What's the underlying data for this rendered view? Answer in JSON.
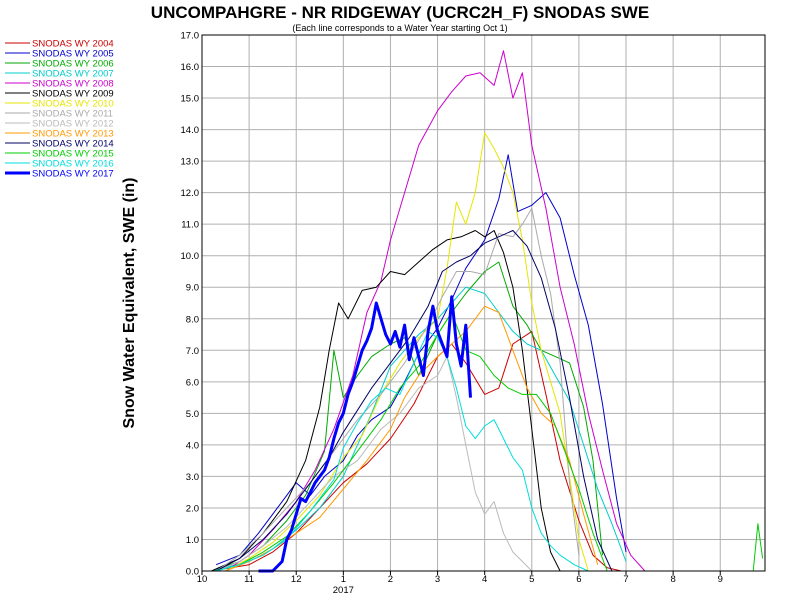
{
  "chart_data": {
    "type": "line",
    "title": "UNCOMPAHGRE - NR RIDGEWAY (UCRC2H_F) SNODAS SWE",
    "subtitle": "(Each line corresponds to a Water Year starting Oct 1)",
    "ylabel": "Snow Water Equivalent, SWE (in)",
    "xlabel": "",
    "ylim": [
      0,
      17
    ],
    "yticks": [
      "0.0",
      "1.0",
      "2.0",
      "3.0",
      "4.0",
      "5.0",
      "6.0",
      "7.0",
      "8.0",
      "9.0",
      "10.0",
      "11.0",
      "12.0",
      "13.0",
      "14.0",
      "15.0",
      "16.0",
      "17.0"
    ],
    "xlim": [
      10,
      10.95
    ],
    "xticks": [
      {
        "value": 10,
        "label": "10"
      },
      {
        "value": 11,
        "label": "11"
      },
      {
        "value": 12,
        "label": "12"
      },
      {
        "value": 13,
        "label": "1"
      },
      {
        "value": 14,
        "label": "2"
      },
      {
        "value": 15,
        "label": "3"
      },
      {
        "value": 16,
        "label": "4"
      },
      {
        "value": 17,
        "label": "5"
      },
      {
        "value": 18,
        "label": "6"
      },
      {
        "value": 19,
        "label": "7"
      },
      {
        "value": 20,
        "label": "8"
      },
      {
        "value": 21,
        "label": "9"
      }
    ],
    "year_label": {
      "value": 13,
      "label": "2017"
    },
    "grid": true,
    "legend_position": "left-outside",
    "series": [
      {
        "name": "SNODAS WY 2004",
        "color": "#cc0000",
        "width": 1,
        "x": [
          10.2,
          11,
          11.5,
          12,
          12.5,
          13,
          13.5,
          14,
          14.5,
          15,
          15.3,
          15.6,
          16,
          16.3,
          16.6,
          17,
          17.3,
          17.6,
          18,
          18.3,
          18.6,
          18.9
        ],
        "y": [
          0,
          0.2,
          0.6,
          1.2,
          2,
          2.8,
          3.4,
          4.2,
          5.3,
          6.8,
          7.2,
          6.6,
          5.6,
          5.8,
          7.2,
          7.6,
          5.6,
          3.5,
          1.6,
          0.5,
          0.1,
          0
        ]
      },
      {
        "name": "SNODAS WY 2005",
        "color": "#0000cc",
        "width": 1,
        "x": [
          10.3,
          10.8,
          11.2,
          11.6,
          12,
          12.3,
          12.6,
          13,
          13.3,
          13.6,
          14,
          14.3,
          14.6,
          15,
          15.3,
          15.6,
          16,
          16.3,
          16.5,
          16.7,
          17,
          17.3,
          17.6,
          17.9,
          18.2,
          18.5,
          18.8,
          19
        ],
        "y": [
          0.2,
          0.5,
          1.2,
          2,
          2.8,
          2.4,
          3,
          3.5,
          4.3,
          4.8,
          5.2,
          6,
          6.9,
          7.7,
          8.6,
          9.6,
          10.5,
          11.8,
          13.2,
          11.4,
          11.6,
          12,
          11.2,
          9.4,
          7.8,
          5.3,
          2.3,
          0.6
        ]
      },
      {
        "name": "SNODAS WY 2006",
        "color": "#00aa00",
        "width": 1,
        "x": [
          10.2,
          10.8,
          11.3,
          11.8,
          12.2,
          12.6,
          12.8,
          13,
          13.3,
          13.6,
          14,
          14.3,
          14.6,
          15,
          15.3,
          15.6,
          16,
          16.3,
          16.6,
          16.9,
          17.2,
          17.5,
          17.8,
          18.1,
          18.3,
          18.5
        ],
        "y": [
          0,
          0.3,
          0.8,
          1.6,
          2.4,
          3.8,
          7,
          5.5,
          6.2,
          6.8,
          7.2,
          7.4,
          6.2,
          7.5,
          8.2,
          8.8,
          9.5,
          9.8,
          8.4,
          7.8,
          7,
          6.8,
          6.6,
          5.2,
          3.5,
          0.5
        ]
      },
      {
        "name": "SNODAS WY 2007",
        "color": "#00cccc",
        "width": 1,
        "x": [
          10.2,
          11,
          11.5,
          12,
          12.5,
          13,
          13.3,
          13.6,
          14,
          14.3,
          14.6,
          15,
          15.3,
          15.6,
          16,
          16.3,
          16.6,
          16.9,
          17.2,
          17.5,
          17.8,
          18.1,
          18.4,
          18.7,
          19
        ],
        "y": [
          0,
          0.3,
          0.7,
          1.3,
          2,
          3,
          4,
          5,
          6.5,
          7,
          7.5,
          8,
          8.5,
          9,
          8.8,
          8.2,
          7.6,
          7.2,
          7,
          6.2,
          5.4,
          4,
          2.6,
          1.5,
          0.3
        ]
      },
      {
        "name": "SNODAS WY 2008",
        "color": "#cc00cc",
        "width": 1,
        "x": [
          10.5,
          11,
          11.5,
          12,
          12.4,
          12.8,
          13.2,
          13.5,
          13.8,
          14,
          14.3,
          14.6,
          15,
          15.3,
          15.6,
          15.9,
          16.2,
          16.4,
          16.6,
          16.8,
          17,
          17.3,
          17.6,
          17.9,
          18.2,
          18.5,
          18.8,
          19.1,
          19.4
        ],
        "y": [
          0,
          0.5,
          1.3,
          2.2,
          3.2,
          4.5,
          6.2,
          8.2,
          9.2,
          10.5,
          12,
          13.5,
          14.6,
          15.2,
          15.7,
          15.8,
          15.4,
          16.5,
          15,
          15.8,
          13.5,
          11.5,
          9,
          7.2,
          5,
          3.2,
          1.5,
          0.5,
          0
        ]
      },
      {
        "name": "SNODAS WY 2009",
        "color": "#000000",
        "width": 1,
        "x": [
          10.2,
          10.8,
          11.3,
          11.8,
          12.2,
          12.5,
          12.7,
          12.9,
          13.1,
          13.4,
          13.7,
          14,
          14.3,
          14.6,
          14.9,
          15.2,
          15.5,
          15.8,
          16,
          16.2,
          16.4,
          16.6,
          16.8,
          17,
          17.2,
          17.4,
          17.6
        ],
        "y": [
          0,
          0.4,
          1.2,
          2.2,
          3.5,
          5.2,
          7,
          8.5,
          8,
          8.9,
          9,
          9.5,
          9.4,
          9.8,
          10.2,
          10.5,
          10.6,
          10.8,
          10.6,
          10.8,
          10.1,
          9,
          7,
          4.5,
          2,
          0.6,
          0
        ]
      },
      {
        "name": "SNODAS WY 2010",
        "color": "#e6e600",
        "width": 1,
        "x": [
          10.5,
          11,
          11.5,
          12,
          12.5,
          13,
          13.4,
          13.8,
          14.2,
          14.6,
          15,
          15.2,
          15.4,
          15.6,
          15.8,
          16,
          16.2,
          16.4,
          16.6,
          16.8,
          17,
          17.2,
          17.4,
          17.6,
          17.8,
          18,
          18.2
        ],
        "y": [
          0,
          0.4,
          0.9,
          1.6,
          2.4,
          3.6,
          4.3,
          5.6,
          6.6,
          7.4,
          8,
          9.6,
          11.7,
          11,
          12,
          13.9,
          13.4,
          12.8,
          12,
          10.5,
          8.5,
          7,
          6,
          5,
          3,
          1,
          0
        ]
      },
      {
        "name": "SNODAS WY 2011",
        "color": "#aaaaaa",
        "width": 1,
        "x": [
          10.3,
          10.8,
          11.3,
          11.8,
          12.3,
          12.8,
          13.3,
          13.8,
          14.3,
          14.8,
          15.1,
          15.4,
          15.7,
          16,
          16.3,
          16.6,
          16.8,
          17,
          17.2,
          17.4,
          17.6,
          17.8,
          18
        ],
        "y": [
          0,
          0.5,
          1.2,
          2,
          2.8,
          3.8,
          4.8,
          5.6,
          6.6,
          7.8,
          8.7,
          9.5,
          9.5,
          9.4,
          10.7,
          10.6,
          11,
          11.5,
          10,
          8.8,
          6.6,
          2.8,
          0.5
        ]
      },
      {
        "name": "SNODAS WY 2012",
        "color": "#bbbbbb",
        "width": 1,
        "x": [
          10.3,
          10.8,
          11.3,
          11.8,
          12.3,
          12.8,
          13.3,
          13.8,
          14.2,
          14.6,
          15,
          15.2,
          15.4,
          15.6,
          15.8,
          16,
          16.2,
          16.4,
          16.6,
          16.8,
          17
        ],
        "y": [
          0,
          0.3,
          0.8,
          1.4,
          2.2,
          3,
          3.5,
          4.5,
          5,
          5.8,
          6.2,
          6.8,
          5.5,
          4,
          2.5,
          1.8,
          2.2,
          1.2,
          0.6,
          0.3,
          0
        ]
      },
      {
        "name": "SNODAS WY 2013",
        "color": "#ff9900",
        "width": 1,
        "x": [
          10.5,
          11,
          11.5,
          12,
          12.5,
          13,
          13.5,
          14,
          14.3,
          14.6,
          15,
          15.3,
          15.6,
          16,
          16.3,
          16.6,
          16.9,
          17.2,
          17.5,
          17.8,
          18.1,
          18.4
        ],
        "y": [
          0,
          0.3,
          0.7,
          1.2,
          1.7,
          2.6,
          3.5,
          4.5,
          5.5,
          6.2,
          6.8,
          7.2,
          7.6,
          8.4,
          8.2,
          7,
          5.8,
          5,
          4.6,
          3.5,
          1.8,
          0.2
        ]
      },
      {
        "name": "SNODAS WY 2014",
        "color": "#000066",
        "width": 1,
        "x": [
          10.3,
          10.8,
          11.3,
          11.8,
          12.3,
          12.7,
          13,
          13.3,
          13.6,
          14,
          14.4,
          14.8,
          15.1,
          15.4,
          15.7,
          16,
          16.3,
          16.6,
          16.9,
          17.2,
          17.5,
          17.8,
          18.1,
          18.4,
          18.7
        ],
        "y": [
          0,
          0.4,
          1,
          1.8,
          2.8,
          3.6,
          4.4,
          5.1,
          5.8,
          6.6,
          7.4,
          8.4,
          9.5,
          9.8,
          10,
          10.4,
          10.6,
          10.8,
          10.3,
          9.3,
          7.7,
          5.5,
          3,
          1,
          0
        ]
      },
      {
        "name": "SNODAS WY 2015",
        "color": "#00cc00",
        "width": 1,
        "x": [
          10.3,
          10.8,
          11.3,
          11.8,
          12.3,
          12.8,
          13.3,
          13.8,
          14.2,
          14.6,
          15,
          15.3,
          15.6,
          15.9,
          16.2,
          16.5,
          16.8,
          17.1,
          17.4,
          17.7,
          18,
          18.3,
          18.6,
          21.7,
          21.8,
          21.9
        ],
        "y": [
          0,
          0.2,
          0.6,
          1.1,
          1.9,
          2.8,
          3.8,
          4.8,
          5.8,
          6.5,
          7.5,
          8.2,
          7,
          6.8,
          6.2,
          5.8,
          5.6,
          5.6,
          5,
          3.8,
          2.6,
          1.2,
          0,
          0,
          1.5,
          0.4
        ]
      },
      {
        "name": "SNODAS WY 2016",
        "color": "#00dddd",
        "width": 1,
        "x": [
          10.3,
          10.8,
          11.3,
          11.8,
          12.3,
          12.8,
          13,
          13.3,
          13.6,
          13.9,
          14.2,
          14.5,
          14.8,
          15,
          15.2,
          15.4,
          15.6,
          15.8,
          16,
          16.2,
          16.4,
          16.6,
          16.8,
          17,
          17.2,
          17.4,
          17.6,
          17.9,
          18.2
        ],
        "y": [
          0,
          0.2,
          0.5,
          1,
          1.9,
          2.9,
          3.9,
          4.7,
          5.4,
          5.8,
          5.6,
          6.6,
          7.6,
          7.4,
          6.8,
          5.8,
          4.6,
          4.2,
          4.6,
          4.8,
          4.2,
          3.6,
          3.2,
          2,
          1.2,
          0.8,
          0.5,
          0.2,
          0
        ]
      },
      {
        "name": "SNODAS WY 2017",
        "color": "#0000ff",
        "width": 3,
        "x": [
          11.2,
          11.5,
          11.7,
          11.8,
          11.9,
          12,
          12.1,
          12.2,
          12.3,
          12.4,
          12.5,
          12.6,
          12.7,
          12.8,
          12.9,
          13,
          13.1,
          13.2,
          13.3,
          13.4,
          13.5,
          13.6,
          13.7,
          13.8,
          13.9,
          14,
          14.1,
          14.2,
          14.3,
          14.4,
          14.5,
          14.6,
          14.7,
          14.8,
          14.9,
          15,
          15.1,
          15.2,
          15.3,
          15.4,
          15.5,
          15.6,
          15.7
        ],
        "y": [
          0,
          0,
          0.3,
          1,
          1.3,
          1.8,
          2.3,
          2.2,
          2.5,
          2.8,
          3,
          3.2,
          3.6,
          4.2,
          4.7,
          5,
          5.6,
          6,
          6.5,
          7,
          7.3,
          7.7,
          8.5,
          8,
          7.5,
          7.2,
          7.6,
          7.1,
          7.8,
          6.7,
          7.4,
          6.8,
          6.2,
          7.6,
          8.4,
          7.6,
          7.2,
          6.8,
          8.7,
          7.2,
          6.5,
          7.8,
          5.5
        ]
      }
    ]
  }
}
